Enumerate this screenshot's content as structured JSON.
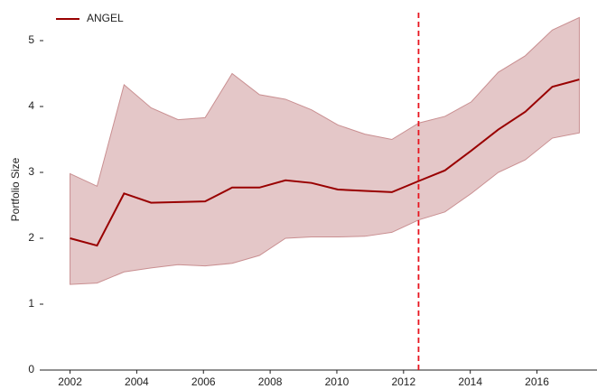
{
  "chart_data": {
    "type": "line",
    "ylabel": "Portfolio Size",
    "xlim": [
      2001.2,
      2017.8
    ],
    "xticks": [
      2002,
      2004,
      2006,
      2008,
      2010,
      2012,
      2014,
      2016
    ],
    "ylim": [
      0,
      5.5
    ],
    "yticks": [
      0,
      1,
      2,
      3,
      4,
      5
    ],
    "legend": "upper left",
    "vline": 2012.45,
    "vline_color": "#e8141e",
    "series": [
      {
        "name": "ANGEL",
        "color": "#990000",
        "band_color": "#c98f91",
        "x": [
          2002.0,
          2002.81,
          2003.62,
          2004.43,
          2005.24,
          2006.05,
          2006.86,
          2007.68,
          2008.46,
          2009.24,
          2010.03,
          2010.84,
          2011.65,
          2012.46,
          2013.24,
          2014.03,
          2014.84,
          2015.65,
          2016.46,
          2017.27
        ],
        "values": [
          2.0,
          1.89,
          2.68,
          2.54,
          2.55,
          2.56,
          2.77,
          2.77,
          2.88,
          2.84,
          2.74,
          2.72,
          2.7,
          2.87,
          3.03,
          3.33,
          3.65,
          3.92,
          4.3,
          4.41
        ],
        "upper": [
          2.98,
          2.79,
          4.33,
          3.98,
          3.8,
          3.83,
          4.5,
          4.18,
          4.11,
          3.95,
          3.72,
          3.58,
          3.5,
          3.75,
          3.85,
          4.07,
          4.52,
          4.77,
          5.16,
          5.35
        ],
        "lower": [
          1.3,
          1.32,
          1.49,
          1.55,
          1.6,
          1.58,
          1.62,
          1.74,
          2.0,
          2.02,
          2.02,
          2.03,
          2.09,
          2.28,
          2.4,
          2.68,
          3.0,
          3.19,
          3.52,
          3.6
        ]
      }
    ]
  }
}
